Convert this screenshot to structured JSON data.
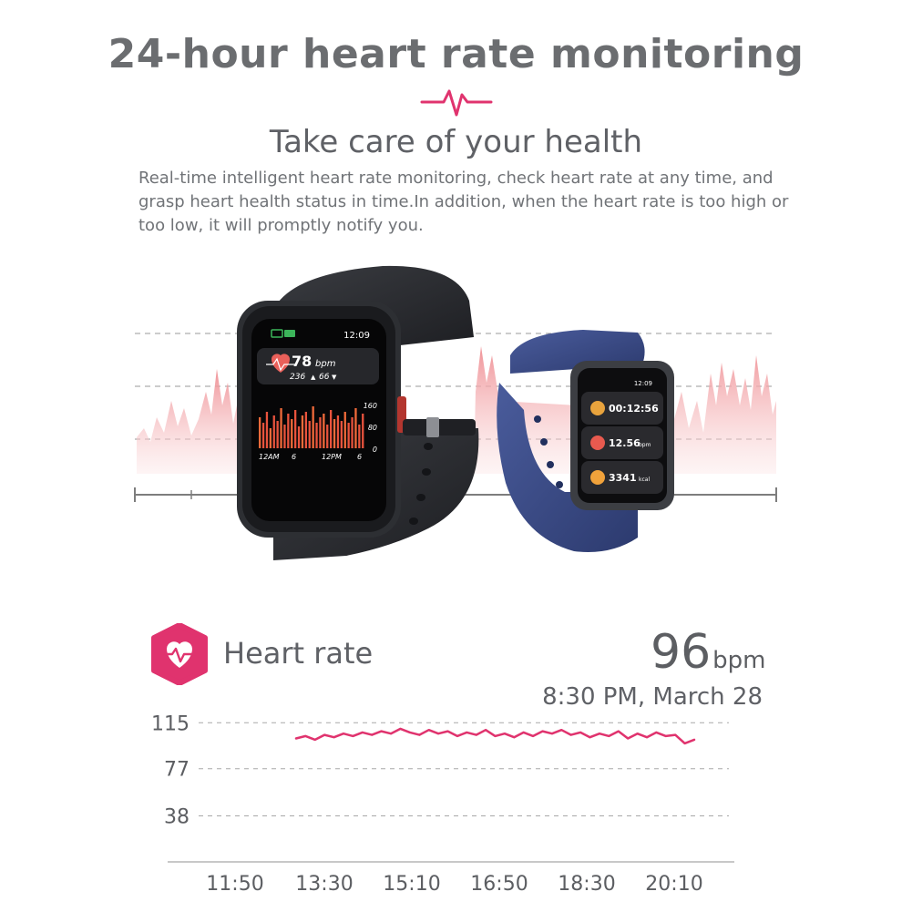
{
  "header": {
    "title": "24-hour heart rate monitoring",
    "subtitle": "Take care of your health",
    "description": "Real-time intelligent heart rate monitoring, check heart rate at any time, and grasp heart health status in time.In addition, when the heart rate is too high or too low, it will promptly notify you."
  },
  "colors": {
    "accent": "#e0336e",
    "title_gray": "#6b6d70",
    "watch_dark": "#2b2d31",
    "watch_blue": "#3b4b86",
    "waveform": "#f2a7aa"
  },
  "watch_black": {
    "time": "12:09",
    "bpm_value": "78",
    "bpm_unit": "bpm",
    "max": "236",
    "min": "66",
    "scale_top": "160",
    "scale_mid": "80",
    "scale_bottom": "0",
    "x_labels": [
      "12AM",
      "6",
      "12PM",
      "6"
    ]
  },
  "watch_blue": {
    "time": "12:09",
    "timer": "00:12:56",
    "distance_value": "12.56",
    "distance_unit": "bpm",
    "calories_value": "3341",
    "calories_unit": "kcal"
  },
  "heart_rate": {
    "label": "Heart rate",
    "value": "96",
    "unit": "bpm",
    "timestamp": "8:30 PM, March 28"
  },
  "chart_data": {
    "type": "line",
    "y_ticks": [
      115,
      77,
      38
    ],
    "ylim": [
      0,
      125
    ],
    "x_ticks": [
      "11:50",
      "13:30",
      "15:10",
      "16:50",
      "18:30",
      "20:10"
    ],
    "series": [
      {
        "values": [
          102,
          104,
          101,
          105,
          103,
          106,
          104,
          107,
          105,
          108,
          106,
          110,
          107,
          105,
          109,
          106,
          108,
          104,
          107,
          105,
          109,
          104,
          106,
          103,
          107,
          104,
          108,
          106,
          109,
          105,
          107,
          103,
          106,
          104,
          108,
          102,
          106,
          103,
          107,
          104,
          105,
          98,
          101
        ]
      }
    ]
  }
}
